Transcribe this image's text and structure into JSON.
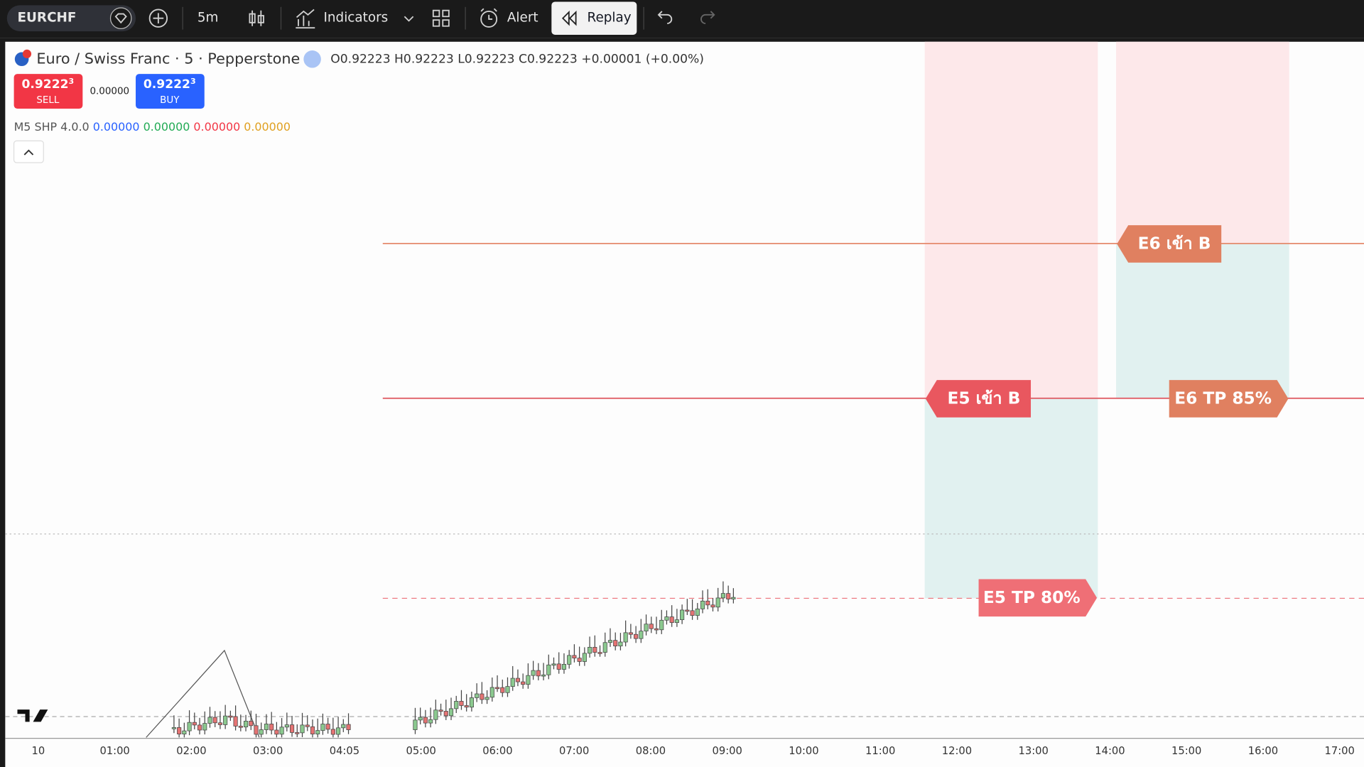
{
  "toolbar": {
    "symbol": "EURCHF",
    "interval": "5m",
    "indicators": "Indicators",
    "alert": "Alert",
    "replay": "Replay"
  },
  "legend": {
    "title": "Euro / Swiss Franc · 5 · Pepperstone",
    "open": "O0.92223",
    "high": "H0.92223",
    "low": "L0.92223",
    "close": "C0.92223",
    "change": "+0.00001 (+0.00%)"
  },
  "trade": {
    "sell_price": "0.9222",
    "sell_pip": "3",
    "sell": "SELL",
    "spread": "0.00000",
    "buy_price": "0.9222",
    "buy_pip": "3",
    "buy": "BUY"
  },
  "indicator": {
    "name": "M5 SHP 4.0.0",
    "values": [
      "0.00000",
      "0.00000",
      "0.00000",
      "0.00000"
    ]
  },
  "annotations": [
    {
      "label": "E6 เข้า B"
    },
    {
      "label": "E5 เข้า B"
    },
    {
      "label": "E6 TP 85%"
    },
    {
      "label": "E5 TP 80%"
    }
  ],
  "time_axis": [
    "10",
    "01:00",
    "02:00",
    "03:00",
    "04:05",
    "05:00",
    "06:00",
    "07:00",
    "08:00",
    "09:00",
    "10:00",
    "11:00",
    "12:00",
    "13:00",
    "14:00",
    "15:00",
    "16:00",
    "17:00"
  ]
}
